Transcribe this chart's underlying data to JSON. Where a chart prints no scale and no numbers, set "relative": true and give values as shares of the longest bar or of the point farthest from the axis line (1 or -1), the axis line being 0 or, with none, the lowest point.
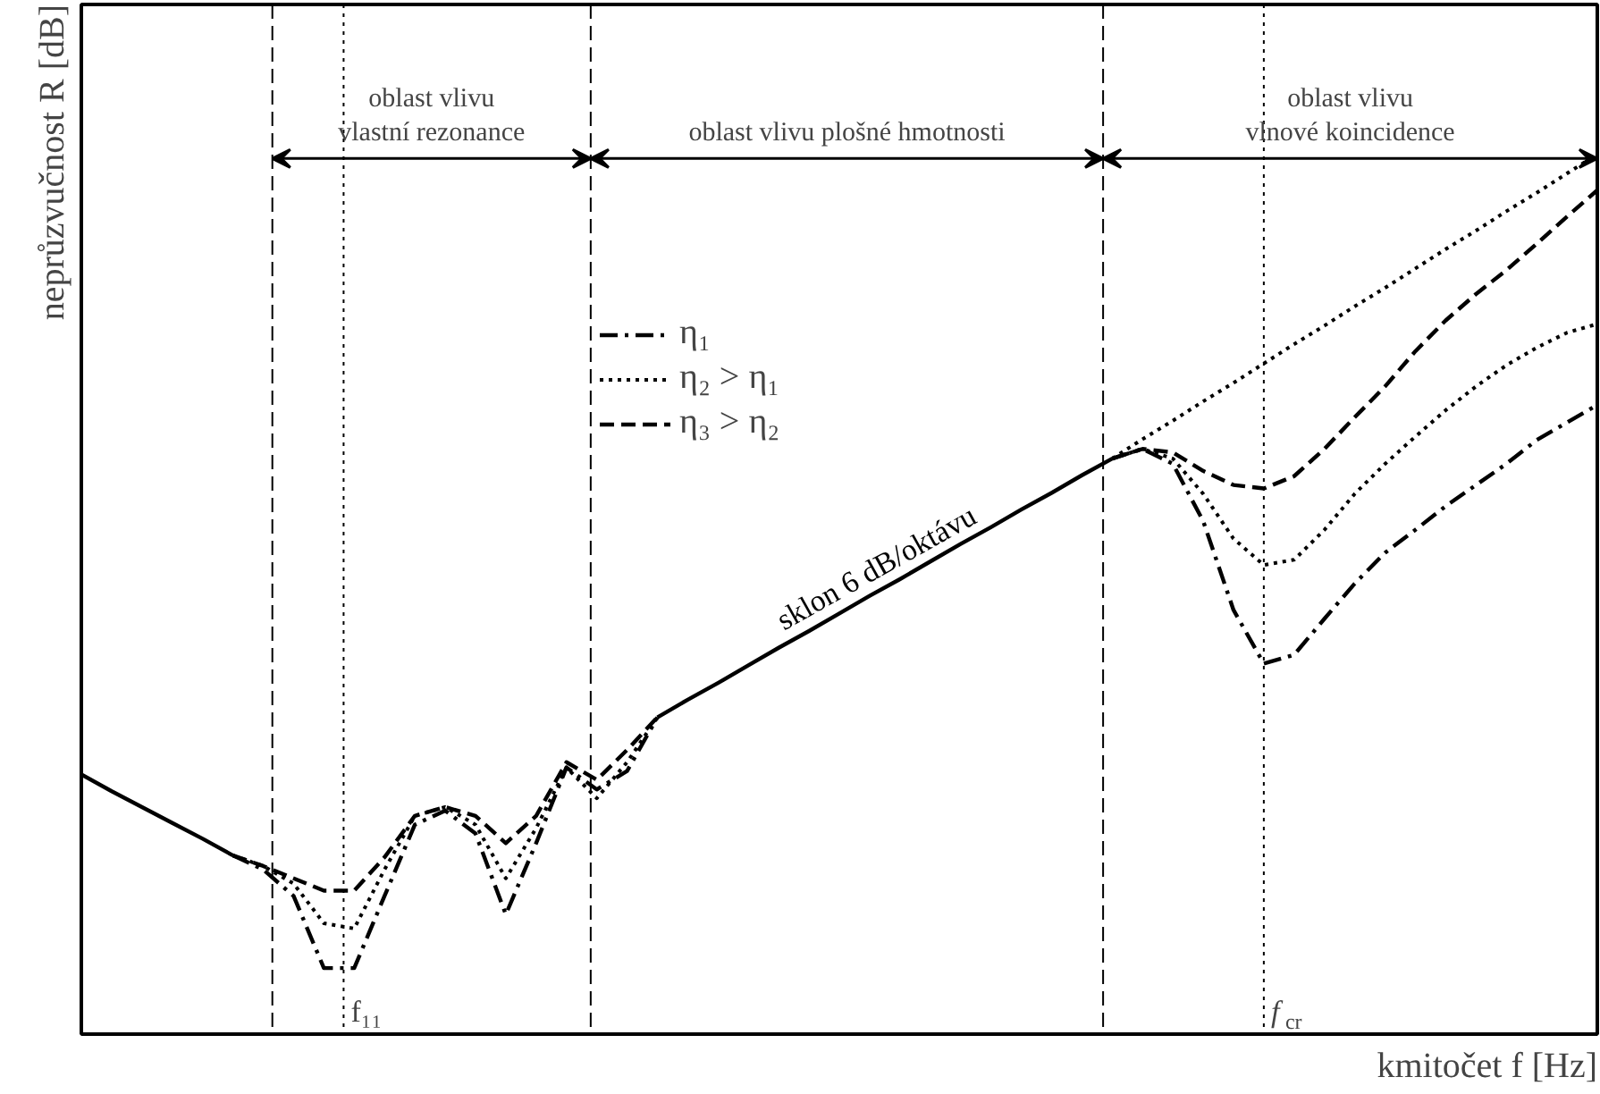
{
  "chart_data": {
    "type": "line",
    "relative": true,
    "xlabel": "kmitočet f [Hz]",
    "ylabel": "neprůzvučnost R [dB]",
    "categories": [
      null,
      null,
      null,
      null,
      null,
      null,
      null,
      null,
      null,
      null,
      null,
      null,
      null,
      null,
      null,
      null,
      null,
      null,
      null,
      null,
      null,
      null,
      null,
      null,
      null,
      null,
      null,
      null,
      null,
      null,
      null,
      null,
      null,
      null,
      null,
      null,
      null,
      null,
      null,
      null,
      null,
      null,
      null,
      null,
      null,
      null,
      null,
      null,
      null,
      null,
      null
    ],
    "series": [
      {
        "color": "#000000",
        "line_style": "solid",
        "values": [
          0.295,
          0.276,
          0.258,
          0.24,
          0.222,
          0.203,
          null,
          null,
          null,
          null,
          null,
          null,
          null,
          null,
          null,
          null,
          null,
          null,
          null,
          null,
          null,
          null,
          null,
          null,
          null,
          null,
          null,
          null,
          null,
          null,
          null,
          null,
          null,
          null,
          null,
          null,
          null,
          null,
          null,
          null,
          null,
          null,
          null,
          null,
          null,
          null,
          null,
          null,
          null,
          null,
          null
        ]
      },
      {
        "name": "sklon 6 dB/oktávu",
        "color": "#000000",
        "line_style": "solid",
        "values": [
          null,
          null,
          null,
          null,
          null,
          null,
          null,
          null,
          null,
          null,
          null,
          null,
          null,
          null,
          null,
          null,
          null,
          null,
          null,
          0.36,
          0.38,
          0.399,
          0.419,
          0.439,
          0.458,
          0.478,
          0.498,
          0.517,
          0.537,
          0.557,
          0.576,
          0.596,
          0.615,
          0.635,
          0.654,
          null,
          null,
          null,
          null,
          null,
          null,
          null,
          null,
          null,
          null,
          null,
          null,
          null,
          null,
          null,
          null
        ]
      },
      {
        "color": "#000000",
        "line_style": "dotted",
        "values": [
          null,
          null,
          null,
          null,
          null,
          null,
          null,
          null,
          null,
          null,
          null,
          null,
          null,
          null,
          null,
          null,
          null,
          null,
          null,
          null,
          null,
          null,
          null,
          null,
          null,
          null,
          null,
          null,
          null,
          null,
          null,
          null,
          null,
          null,
          0.654,
          0.676,
          0.697,
          0.719,
          0.74,
          0.762,
          0.784,
          0.805,
          0.827,
          0.848,
          0.87,
          0.892,
          0.913,
          0.935,
          0.956,
          0.978,
          1.0
        ]
      },
      {
        "name": "η₁",
        "color": "#000000",
        "line_style": "dashdot",
        "values": [
          null,
          null,
          null,
          null,
          null,
          0.203,
          0.187,
          0.157,
          0.075,
          0.075,
          0.157,
          0.238,
          0.254,
          0.228,
          0.136,
          0.217,
          0.303,
          0.278,
          0.299,
          0.36,
          null,
          null,
          null,
          null,
          null,
          null,
          null,
          null,
          null,
          null,
          null,
          null,
          null,
          null,
          null,
          null,
          null,
          null,
          null,
          null,
          null,
          null,
          null,
          null,
          null,
          null,
          null,
          null,
          null,
          null,
          null
        ]
      },
      {
        "color": "#000000",
        "line_style": "dashdot",
        "values": [
          null,
          null,
          null,
          null,
          null,
          null,
          null,
          null,
          null,
          null,
          null,
          null,
          null,
          null,
          null,
          null,
          null,
          null,
          null,
          null,
          null,
          null,
          null,
          null,
          null,
          null,
          null,
          null,
          null,
          null,
          null,
          null,
          null,
          null,
          0.654,
          0.665,
          0.648,
          0.583,
          0.482,
          0.421,
          0.431,
          0.472,
          0.512,
          0.547,
          0.573,
          0.6,
          0.624,
          0.648,
          0.675,
          0.695,
          0.715
        ]
      },
      {
        "name": "η₂ > η₁",
        "color": "#000000",
        "line_style": "dotted",
        "values": [
          null,
          null,
          null,
          null,
          null,
          0.203,
          0.191,
          0.171,
          0.126,
          0.12,
          0.187,
          0.248,
          0.258,
          0.238,
          0.177,
          0.234,
          0.303,
          0.268,
          0.309,
          0.36,
          null,
          null,
          null,
          null,
          null,
          null,
          null,
          null,
          null,
          null,
          null,
          null,
          null,
          null,
          null,
          null,
          null,
          null,
          null,
          null,
          null,
          null,
          null,
          null,
          null,
          null,
          null,
          null,
          null,
          null,
          null
        ]
      },
      {
        "color": "#000000",
        "line_style": "dotted",
        "values": [
          null,
          null,
          null,
          null,
          null,
          null,
          null,
          null,
          null,
          null,
          null,
          null,
          null,
          null,
          null,
          null,
          null,
          null,
          null,
          null,
          null,
          null,
          null,
          null,
          null,
          null,
          null,
          null,
          null,
          null,
          null,
          null,
          null,
          null,
          0.654,
          0.665,
          0.654,
          0.614,
          0.563,
          0.533,
          0.539,
          0.573,
          0.614,
          0.648,
          0.679,
          0.709,
          0.736,
          0.76,
          0.78,
          0.797,
          0.807
        ]
      },
      {
        "name": "η₃ > η₂",
        "color": "#000000",
        "line_style": "dashed",
        "values": [
          null,
          null,
          null,
          null,
          null,
          0.203,
          0.191,
          0.177,
          0.163,
          0.163,
          0.201,
          0.248,
          0.258,
          0.248,
          0.217,
          0.248,
          0.309,
          0.289,
          0.323,
          0.36,
          null,
          null,
          null,
          null,
          null,
          null,
          null,
          null,
          null,
          null,
          null,
          null,
          null,
          null,
          null,
          null,
          null,
          null,
          null,
          null,
          null,
          null,
          null,
          null,
          null,
          null,
          null,
          null,
          null,
          null,
          null
        ]
      },
      {
        "color": "#000000",
        "line_style": "dashed",
        "values": [
          null,
          null,
          null,
          null,
          null,
          null,
          null,
          null,
          null,
          null,
          null,
          null,
          null,
          null,
          null,
          null,
          null,
          null,
          null,
          null,
          null,
          null,
          null,
          null,
          null,
          null,
          null,
          null,
          null,
          null,
          null,
          null,
          null,
          null,
          0.654,
          0.665,
          0.661,
          0.64,
          0.624,
          0.62,
          0.634,
          0.665,
          0.701,
          0.736,
          0.776,
          0.811,
          0.841,
          0.868,
          0.898,
          0.929,
          0.959
        ]
      }
    ],
    "annotations": [
      "oblast vlivu\nvlastní rezonance",
      "oblast vlivu plošné hmotnosti",
      "oblast vlivu\nvlnové koincidence",
      "f₁₁",
      "f$_{cr}$"
    ],
    "legend": "top left",
    "grid": false
  }
}
